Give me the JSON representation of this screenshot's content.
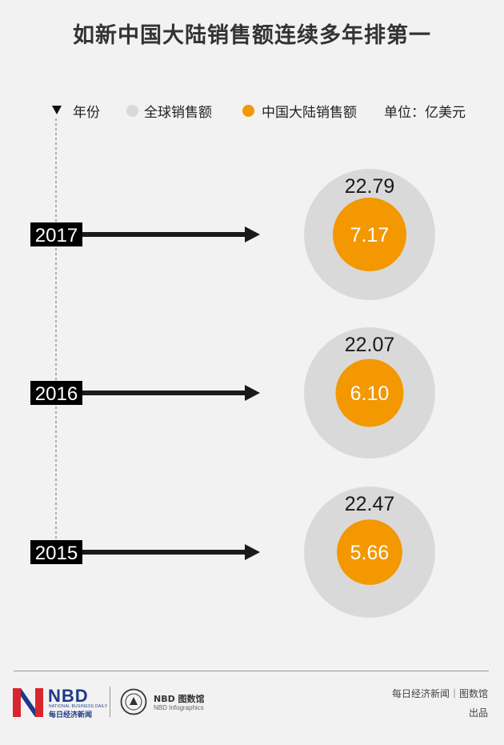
{
  "title": "如新中国大陆销售额连续多年排第一",
  "legend": {
    "year": "年份",
    "global": "全球销售额",
    "china": "中国大陆销售额",
    "unit": "单位：亿美元"
  },
  "colors": {
    "global": "#d9d9d9",
    "china": "#f39800",
    "arrow": "#1a1a1a",
    "label_bg": "#000000"
  },
  "chart_data": {
    "type": "bubble",
    "title": "如新中国大陆销售额连续多年排第一",
    "unit": "单位：亿美元",
    "categories": [
      "2017",
      "2016",
      "2015"
    ],
    "series": [
      {
        "name": "全球销售额",
        "values": [
          22.79,
          22.07,
          22.47
        ]
      },
      {
        "name": "中国大陆销售额",
        "values": [
          7.17,
          6.1,
          5.66
        ]
      }
    ]
  },
  "footer": {
    "brand": "NBD",
    "brand_en": "NATIONAL BUSINESS DAILY",
    "brand_cn": "每日经济新闻",
    "sub_brand": "NBD 图数馆",
    "sub_brand_en": "NBD Infographics",
    "credit_line1": "每日经济新闻｜图数馆",
    "credit_line2": "出品"
  }
}
